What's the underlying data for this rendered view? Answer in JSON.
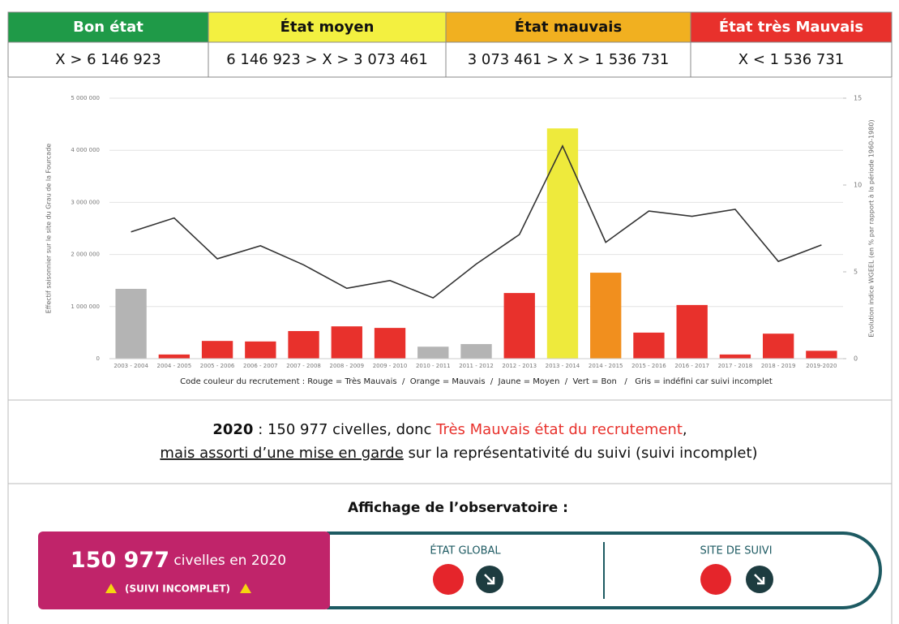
{
  "table": {
    "header": [
      "Bon état",
      "État moyen",
      "État mauvais",
      "État très Mauvais"
    ],
    "header_colors": [
      "#1f9a48",
      "#f3f040",
      "#f1b020",
      "#e8312c"
    ],
    "header_text_colors": [
      "#ffffff",
      "#111111",
      "#111111",
      "#ffffff"
    ],
    "rows": [
      [
        "X > 6 146 923",
        "6 146 923 > X > 3 073 461",
        "3 073 461 > X > 1 536 731",
        "X < 1 536 731"
      ]
    ]
  },
  "chart_data": {
    "type": "bar",
    "ylabel": "Effectif saisonnier sur le site du Grau de la Fourcade",
    "y2label": "Evolution indice WGEEL (en % par rapport à la période 1960-1980)",
    "caption": "Code couleur du recrutement : Rouge = Très Mauvais  /  Orange = Mauvais  /  Jaune = Moyen  /  Vert = Bon   /   Gris = indéfini car suivi incomplet",
    "categories": [
      "2003 - 2004",
      "2004 - 2005",
      "2005 - 2006",
      "2006 - 2007",
      "2007 - 2008",
      "2008 - 2009",
      "2009 - 2010",
      "2010 - 2011",
      "2011 - 2012",
      "2012 - 2013",
      "2013 - 2014",
      "2014 - 2015",
      "2015 - 2016",
      "2016 - 2017",
      "2017 - 2018",
      "2018 - 2019",
      "2019-2020"
    ],
    "values": [
      1340000,
      80000,
      340000,
      330000,
      530000,
      620000,
      590000,
      230000,
      280000,
      1260000,
      4420000,
      1650000,
      500000,
      1030000,
      80000,
      480000,
      150977
    ],
    "colors": [
      "#b4b4b4",
      "#e8312c",
      "#e8312c",
      "#e8312c",
      "#e8312c",
      "#e8312c",
      "#e8312c",
      "#b4b4b4",
      "#b4b4b4",
      "#e8312c",
      "#eeea3c",
      "#f18f1e",
      "#e8312c",
      "#e8312c",
      "#e8312c",
      "#e8312c",
      "#e8312c"
    ],
    "line": {
      "values": [
        7.3,
        8.1,
        5.75,
        6.5,
        5.4,
        4.05,
        4.5,
        3.5,
        5.45,
        7.15,
        12.25,
        6.7,
        8.5,
        8.2,
        8.6,
        5.6,
        6.55
      ],
      "color": "#333333",
      "axis": "y2"
    },
    "ylim": [
      0,
      5000000
    ],
    "yticks": [
      0,
      {
        "value": 1000000,
        "label": "1 000 000"
      },
      {
        "value": 2000000,
        "label": "2 000 000"
      },
      {
        "value": 3000000,
        "label": "3 000 000"
      },
      {
        "value": 4000000,
        "label": "4 000 000"
      },
      {
        "value": 5000000,
        "label": "5 000 000"
      }
    ],
    "y2lim": [
      0,
      15
    ],
    "y2ticks": [
      0,
      5,
      10,
      15
    ],
    "grid": true
  },
  "summary": {
    "year": "2020",
    "text1": " : 150 977 civelles, donc ",
    "highlight": "Très Mauvais état du recrutement",
    "text2": ",",
    "underlined": "mais assorti d’une mise en garde",
    "text3": " sur la représentativité du suivi (suivi incomplet)"
  },
  "observatory": {
    "title": "Affichage de l’observatoire :",
    "count": "150 977",
    "count_text": " civelles en 2020",
    "warning": "(SUIVI INCOMPLET)",
    "global_label": "ÉTAT GLOBAL",
    "site_label": "SITE DE SUIVI"
  }
}
